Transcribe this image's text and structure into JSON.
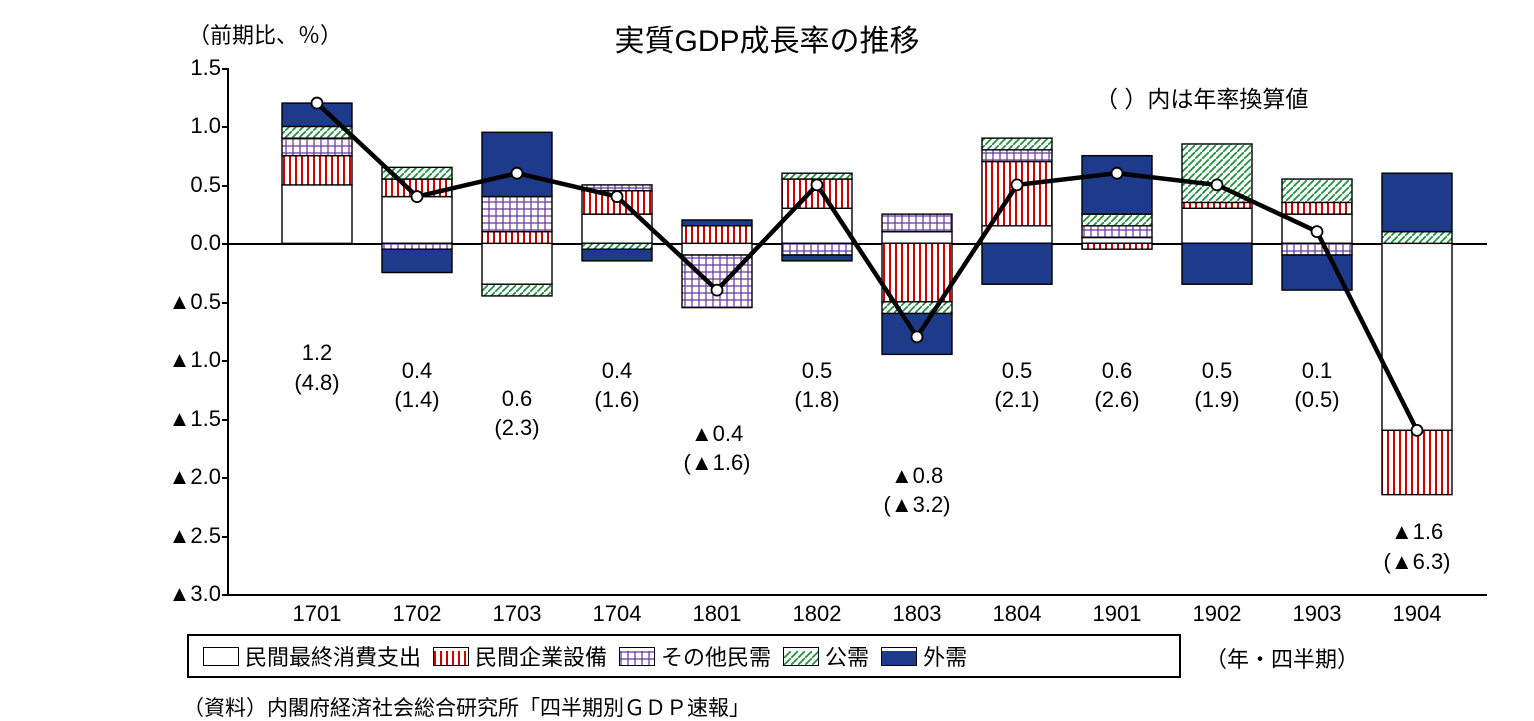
{
  "chart": {
    "type": "stacked-bar+line",
    "title": "実質GDP成長率の推移",
    "yaxis_title": "（前期比、％）",
    "annualized_note": "（  ）内は年率換算値",
    "xaxis_unit": "（年・四半期）",
    "source": "（資料）内閣府経済社会総合研究所「四半期別ＧＤＰ速報」",
    "ylim": [
      -3.0,
      1.5
    ],
    "ytick_step": 0.5,
    "yticks": [
      {
        "v": 1.5,
        "label": "1.5"
      },
      {
        "v": 1.0,
        "label": "1.0"
      },
      {
        "v": 0.5,
        "label": "0.5"
      },
      {
        "v": 0.0,
        "label": "0.0"
      },
      {
        "v": -0.5,
        "label": "▲0.5"
      },
      {
        "v": -1.0,
        "label": "▲1.0"
      },
      {
        "v": -1.5,
        "label": "▲1.5"
      },
      {
        "v": -2.0,
        "label": "▲2.0"
      },
      {
        "v": -2.5,
        "label": "▲2.5"
      },
      {
        "v": -3.0,
        "label": "▲3.0"
      }
    ],
    "categories": [
      "1701",
      "1702",
      "1703",
      "1704",
      "1801",
      "1802",
      "1803",
      "1804",
      "1901",
      "1902",
      "1903",
      "1904"
    ],
    "colors": {
      "background": "#ffffff",
      "axis": "#000000",
      "line": "#000000",
      "marker_fill": "#ffffff",
      "white": "#ffffff",
      "red": "#cc0000",
      "purple": "#6b3fa0",
      "green": "#1e8f3e",
      "navy": "#1e3a8a"
    },
    "font": {
      "family": "MS PGothic",
      "title_size_pt": 22,
      "axis_label_size_pt": 16,
      "tick_size_pt": 16,
      "data_label_size_pt": 16,
      "legend_size_pt": 16
    },
    "bar_width_ratio": 0.7,
    "legend": [
      {
        "label": "民間最終消費支出",
        "pattern": "white"
      },
      {
        "label": "民間企業設備",
        "pattern": "vlines-red"
      },
      {
        "label": "その他民需",
        "pattern": "crosshatch-purple"
      },
      {
        "label": "公需",
        "pattern": "diag-green"
      },
      {
        "label": "外需",
        "pattern": "solid-navy"
      }
    ],
    "series_bars": [
      {
        "cat": "1701",
        "consumption": 0.5,
        "investment": 0.25,
        "other_private": 0.15,
        "public": 0.1,
        "external": 0.2,
        "line": 1.2,
        "label": "1.2",
        "annual": "(4.8)"
      },
      {
        "cat": "1702",
        "consumption": 0.4,
        "investment": 0.15,
        "other_private": -0.05,
        "public": 0.1,
        "external": -0.2,
        "line": 0.4,
        "label": "0.4",
        "annual": "(1.4)"
      },
      {
        "cat": "1703",
        "consumption": -0.35,
        "investment": 0.1,
        "other_private": 0.3,
        "public": -0.1,
        "external": 0.55,
        "line": 0.6,
        "label": "0.6",
        "annual": "(2.3)"
      },
      {
        "cat": "1704",
        "consumption": 0.25,
        "investment": 0.2,
        "other_private": 0.05,
        "public": -0.05,
        "external": -0.1,
        "line": 0.4,
        "label": "0.4",
        "annual": "(1.6)"
      },
      {
        "cat": "1801",
        "consumption": -0.1,
        "investment": 0.15,
        "other_private": -0.45,
        "public": 0.0,
        "external": 0.05,
        "line": -0.4,
        "label": "▲0.4",
        "annual": "(▲1.6)"
      },
      {
        "cat": "1802",
        "consumption": 0.3,
        "investment": 0.25,
        "other_private": -0.1,
        "public": 0.05,
        "external": -0.05,
        "line": 0.5,
        "label": "0.5",
        "annual": "(1.8)"
      },
      {
        "cat": "1803",
        "consumption": 0.1,
        "investment": -0.5,
        "other_private": 0.15,
        "public": -0.1,
        "external": -0.35,
        "line": -0.8,
        "label": "▲0.8",
        "annual": "(▲3.2)"
      },
      {
        "cat": "1804",
        "consumption": 0.15,
        "investment": 0.55,
        "other_private": 0.1,
        "public": 0.1,
        "external": -0.35,
        "line": 0.5,
        "label": "0.5",
        "annual": "(2.1)"
      },
      {
        "cat": "1901",
        "consumption": 0.05,
        "investment": -0.05,
        "other_private": 0.1,
        "public": 0.1,
        "external": 0.5,
        "line": 0.6,
        "label": "0.6",
        "annual": "(2.6)"
      },
      {
        "cat": "1902",
        "consumption": 0.3,
        "investment": 0.05,
        "other_private": 0.0,
        "public": 0.5,
        "external": -0.35,
        "line": 0.5,
        "label": "0.5",
        "annual": "(1.9)"
      },
      {
        "cat": "1903",
        "consumption": 0.25,
        "investment": 0.1,
        "other_private": -0.1,
        "public": 0.2,
        "external": -0.3,
        "line": 0.1,
        "label": "0.1",
        "annual": "(0.5)"
      },
      {
        "cat": "1904",
        "consumption": -1.6,
        "investment": -0.55,
        "other_private": 0.0,
        "public": 0.1,
        "external": 0.5,
        "line": -1.6,
        "label": "▲1.6",
        "annual": "(▲6.3)"
      }
    ]
  }
}
